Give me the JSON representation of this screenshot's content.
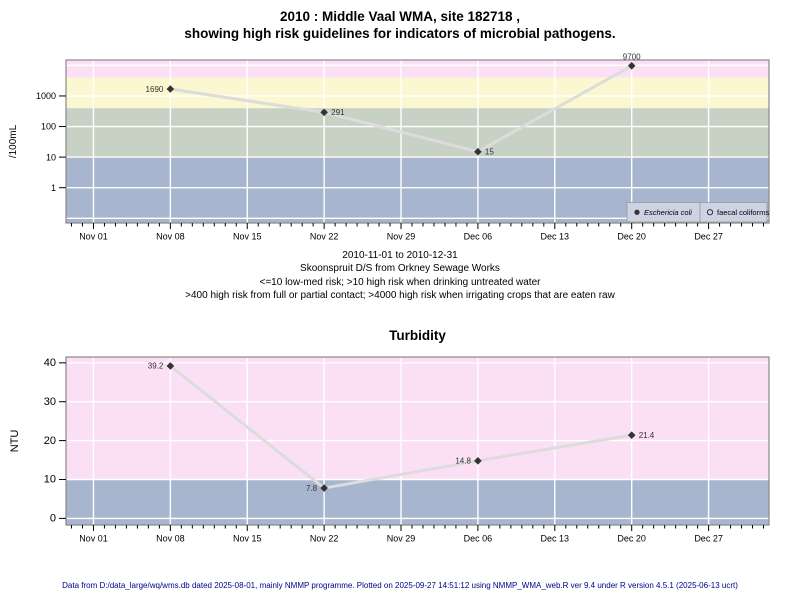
{
  "page": {
    "title_line1": "2010 : Middle Vaal WMA, site 182718 ,",
    "title_line2": "showing high risk guidelines for indicators of microbial pathogens.",
    "footer": "Data from D:/data_large/wq/wms.db dated 2025-08-01, mainly NMMP programme. Plotted on 2025-09-27 14:51:12 using NMMP_WMA_web.R ver 9.4 under R version 4.5.1 (2025-06-13 ucrt)"
  },
  "notes": {
    "lines": [
      "2010-11-01 to 2010-12-31",
      "Skoonspruit D/S from Orkney Sewage Works",
      "<=10 low-med risk; >10 high risk when drinking untreated water",
      ">400 high risk from full or partial contact; >4000 high risk when irrigating crops that are eaten raw"
    ]
  },
  "colors": {
    "band_blue": "#A7B5CE",
    "band_green": "#C8D2C4",
    "band_yellow": "#FBF7D0",
    "band_pink": "#FBDFF5",
    "grid_white": "#FFFFFF",
    "plot_border": "#888888",
    "data_line": "#DCDCDC",
    "data_point": "#333333",
    "legend_bg": "#CCD3E2",
    "legend_border": "#999999",
    "footer_text": "#00008B"
  },
  "chart_data": [
    {
      "type": "line",
      "title": "",
      "xlabel": "",
      "ylabel": "/100mL",
      "yscale": "log",
      "ylim": [
        0.07,
        15000
      ],
      "yticks": [
        1,
        10,
        100,
        1000
      ],
      "ygrid": [
        0.1,
        1,
        10,
        100,
        1000,
        10000
      ],
      "xlim_days": [
        -2.5,
        61.5
      ],
      "xticks": [
        {
          "day": 0,
          "label": "Nov 01"
        },
        {
          "day": 7,
          "label": "Nov 08"
        },
        {
          "day": 14,
          "label": "Nov 15"
        },
        {
          "day": 21,
          "label": "Nov 22"
        },
        {
          "day": 28,
          "label": "Nov 29"
        },
        {
          "day": 35,
          "label": "Dec 06"
        },
        {
          "day": 42,
          "label": "Dec 13"
        },
        {
          "day": 49,
          "label": "Dec 20"
        },
        {
          "day": 56,
          "label": "Dec 27"
        }
      ],
      "minor_tick_interval_days": 1,
      "bands": [
        {
          "from": "min",
          "to": 10,
          "color": "#A7B5CE",
          "meaning": "<=10 low-med risk"
        },
        {
          "from": 10,
          "to": 400,
          "color": "#C8D2C4",
          "meaning": ">10 high risk drinking untreated water"
        },
        {
          "from": 400,
          "to": 4000,
          "color": "#FBF7D0",
          "meaning": ">400 high risk full or partial contact"
        },
        {
          "from": 4000,
          "to": "max",
          "color": "#FBDFF5",
          "meaning": ">4000 high risk irrigating crops eaten raw"
        }
      ],
      "series": [
        {
          "name": "Eschericia coli",
          "marker": "filled-diamond",
          "points": [
            {
              "x_day": 7,
              "date": "Nov 08",
              "value": 1690,
              "label": "1690",
              "label_side": "left"
            },
            {
              "x_day": 21,
              "date": "Nov 22",
              "value": 291,
              "label": "291",
              "label_side": "right"
            },
            {
              "x_day": 35,
              "date": "Dec 06",
              "value": 15,
              "label": "15",
              "label_side": "right"
            },
            {
              "x_day": 49,
              "date": "Dec 20",
              "value": 9700,
              "label": "9700",
              "label_side": "above"
            }
          ]
        },
        {
          "name": "faecal coliforms",
          "marker": "open-circle",
          "points": []
        }
      ],
      "legend": {
        "position": "bottom-right",
        "items": [
          {
            "label": "Eschericia coli",
            "marker": "filled-circle",
            "italic": true
          },
          {
            "label": "faecal coliforms",
            "marker": "open-circle",
            "italic": false
          }
        ]
      }
    },
    {
      "type": "line",
      "title": "Turbidity",
      "xlabel": "",
      "ylabel": "NTU",
      "yscale": "linear",
      "ylim": [
        -1.7,
        41.5
      ],
      "yticks": [
        0,
        10,
        20,
        30,
        40
      ],
      "ygrid": [
        0,
        10,
        20,
        30,
        40
      ],
      "xlim_days": [
        -2.5,
        61.5
      ],
      "xticks": [
        {
          "day": 0,
          "label": "Nov 01"
        },
        {
          "day": 7,
          "label": "Nov 08"
        },
        {
          "day": 14,
          "label": "Nov 15"
        },
        {
          "day": 21,
          "label": "Nov 22"
        },
        {
          "day": 28,
          "label": "Nov 29"
        },
        {
          "day": 35,
          "label": "Dec 06"
        },
        {
          "day": 42,
          "label": "Dec 13"
        },
        {
          "day": 49,
          "label": "Dec 20"
        },
        {
          "day": 56,
          "label": "Dec 27"
        }
      ],
      "minor_tick_interval_days": 1,
      "bands": [
        {
          "from": "min",
          "to": 10,
          "color": "#A7B5CE"
        },
        {
          "from": 10,
          "to": "max",
          "color": "#FBDFF5"
        }
      ],
      "series": [
        {
          "name": "Turbidity",
          "marker": "filled-diamond",
          "points": [
            {
              "x_day": 7,
              "date": "Nov 08",
              "value": 39.2,
              "label": "39.2",
              "label_side": "left"
            },
            {
              "x_day": 21,
              "date": "Nov 22",
              "value": 7.8,
              "label": "7.8",
              "label_side": "left"
            },
            {
              "x_day": 35,
              "date": "Dec 06",
              "value": 14.8,
              "label": "14.8",
              "label_side": "left"
            },
            {
              "x_day": 49,
              "date": "Dec 20",
              "value": 21.4,
              "label": "21.4",
              "label_side": "right"
            }
          ]
        }
      ],
      "legend": null
    }
  ]
}
